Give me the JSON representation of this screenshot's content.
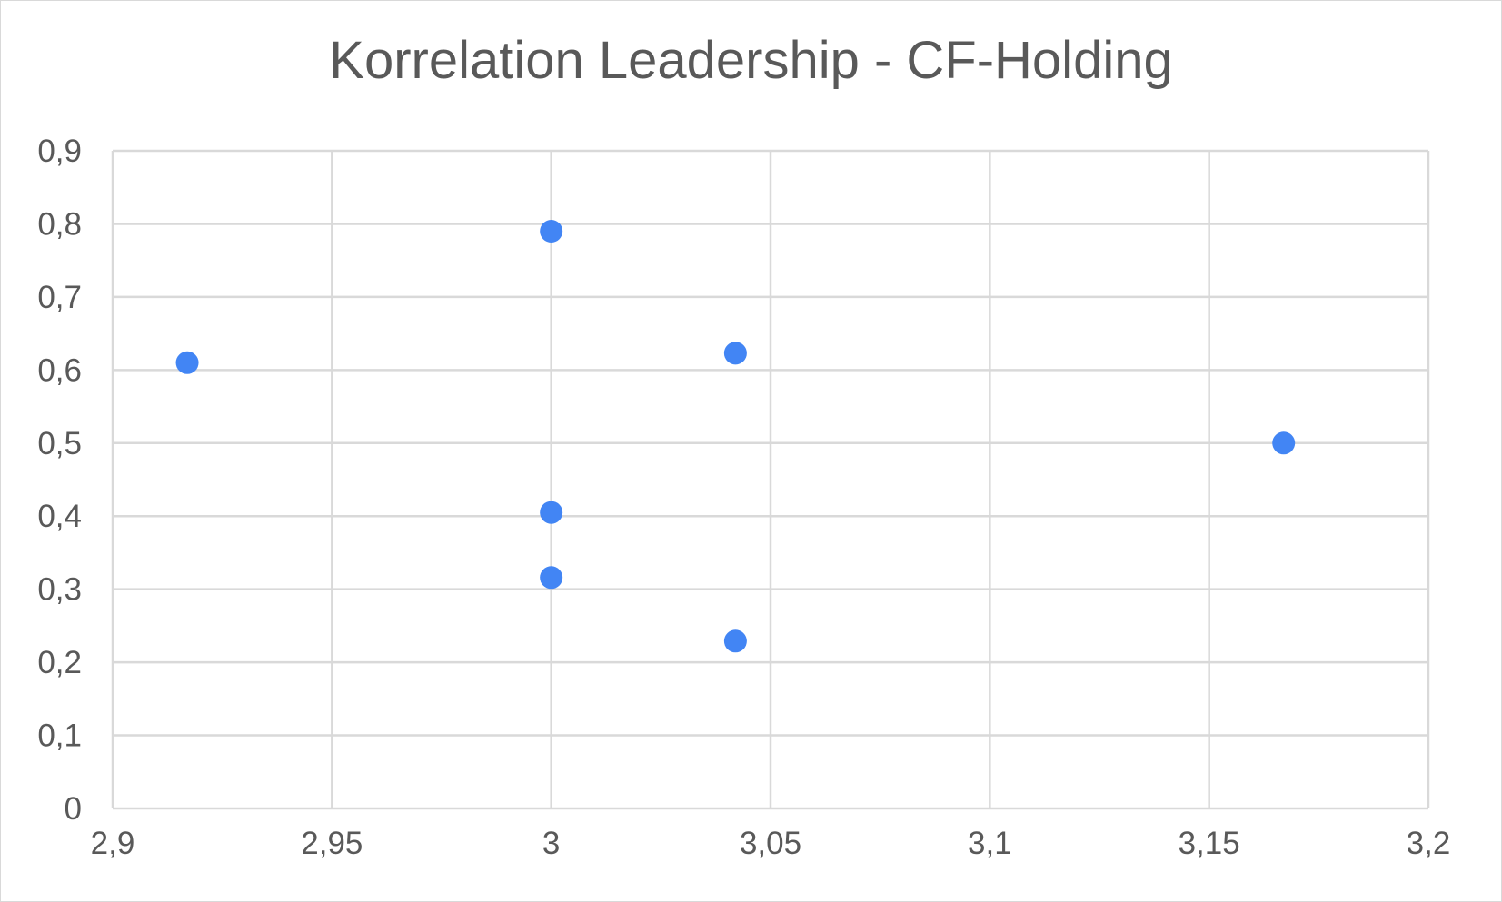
{
  "chart_data": {
    "type": "scatter",
    "title": "Korrelation Leadership - CF-Holding",
    "xlabel": "",
    "ylabel": "",
    "xlim": [
      2.9,
      3.2
    ],
    "ylim": [
      0,
      0.9
    ],
    "x_ticks": [
      "2,9",
      "2,95",
      "3",
      "3,05",
      "3,1",
      "3,15",
      "3,2"
    ],
    "y_ticks": [
      "0",
      "0,1",
      "0,2",
      "0,3",
      "0,4",
      "0,5",
      "0,6",
      "0,7",
      "0,8",
      "0,9"
    ],
    "x_tick_values": [
      2.9,
      2.95,
      3.0,
      3.05,
      3.1,
      3.15,
      3.2
    ],
    "y_tick_values": [
      0,
      0.1,
      0.2,
      0.3,
      0.4,
      0.5,
      0.6,
      0.7,
      0.8,
      0.9
    ],
    "grid": true,
    "legend": "none",
    "marker_color": "#4285f4",
    "grid_color": "#d9d9d9",
    "points": [
      {
        "x": 2.917,
        "y": 0.61
      },
      {
        "x": 3.0,
        "y": 0.79
      },
      {
        "x": 3.0,
        "y": 0.405
      },
      {
        "x": 3.0,
        "y": 0.316
      },
      {
        "x": 3.042,
        "y": 0.623
      },
      {
        "x": 3.042,
        "y": 0.229
      },
      {
        "x": 3.167,
        "y": 0.5
      }
    ]
  }
}
